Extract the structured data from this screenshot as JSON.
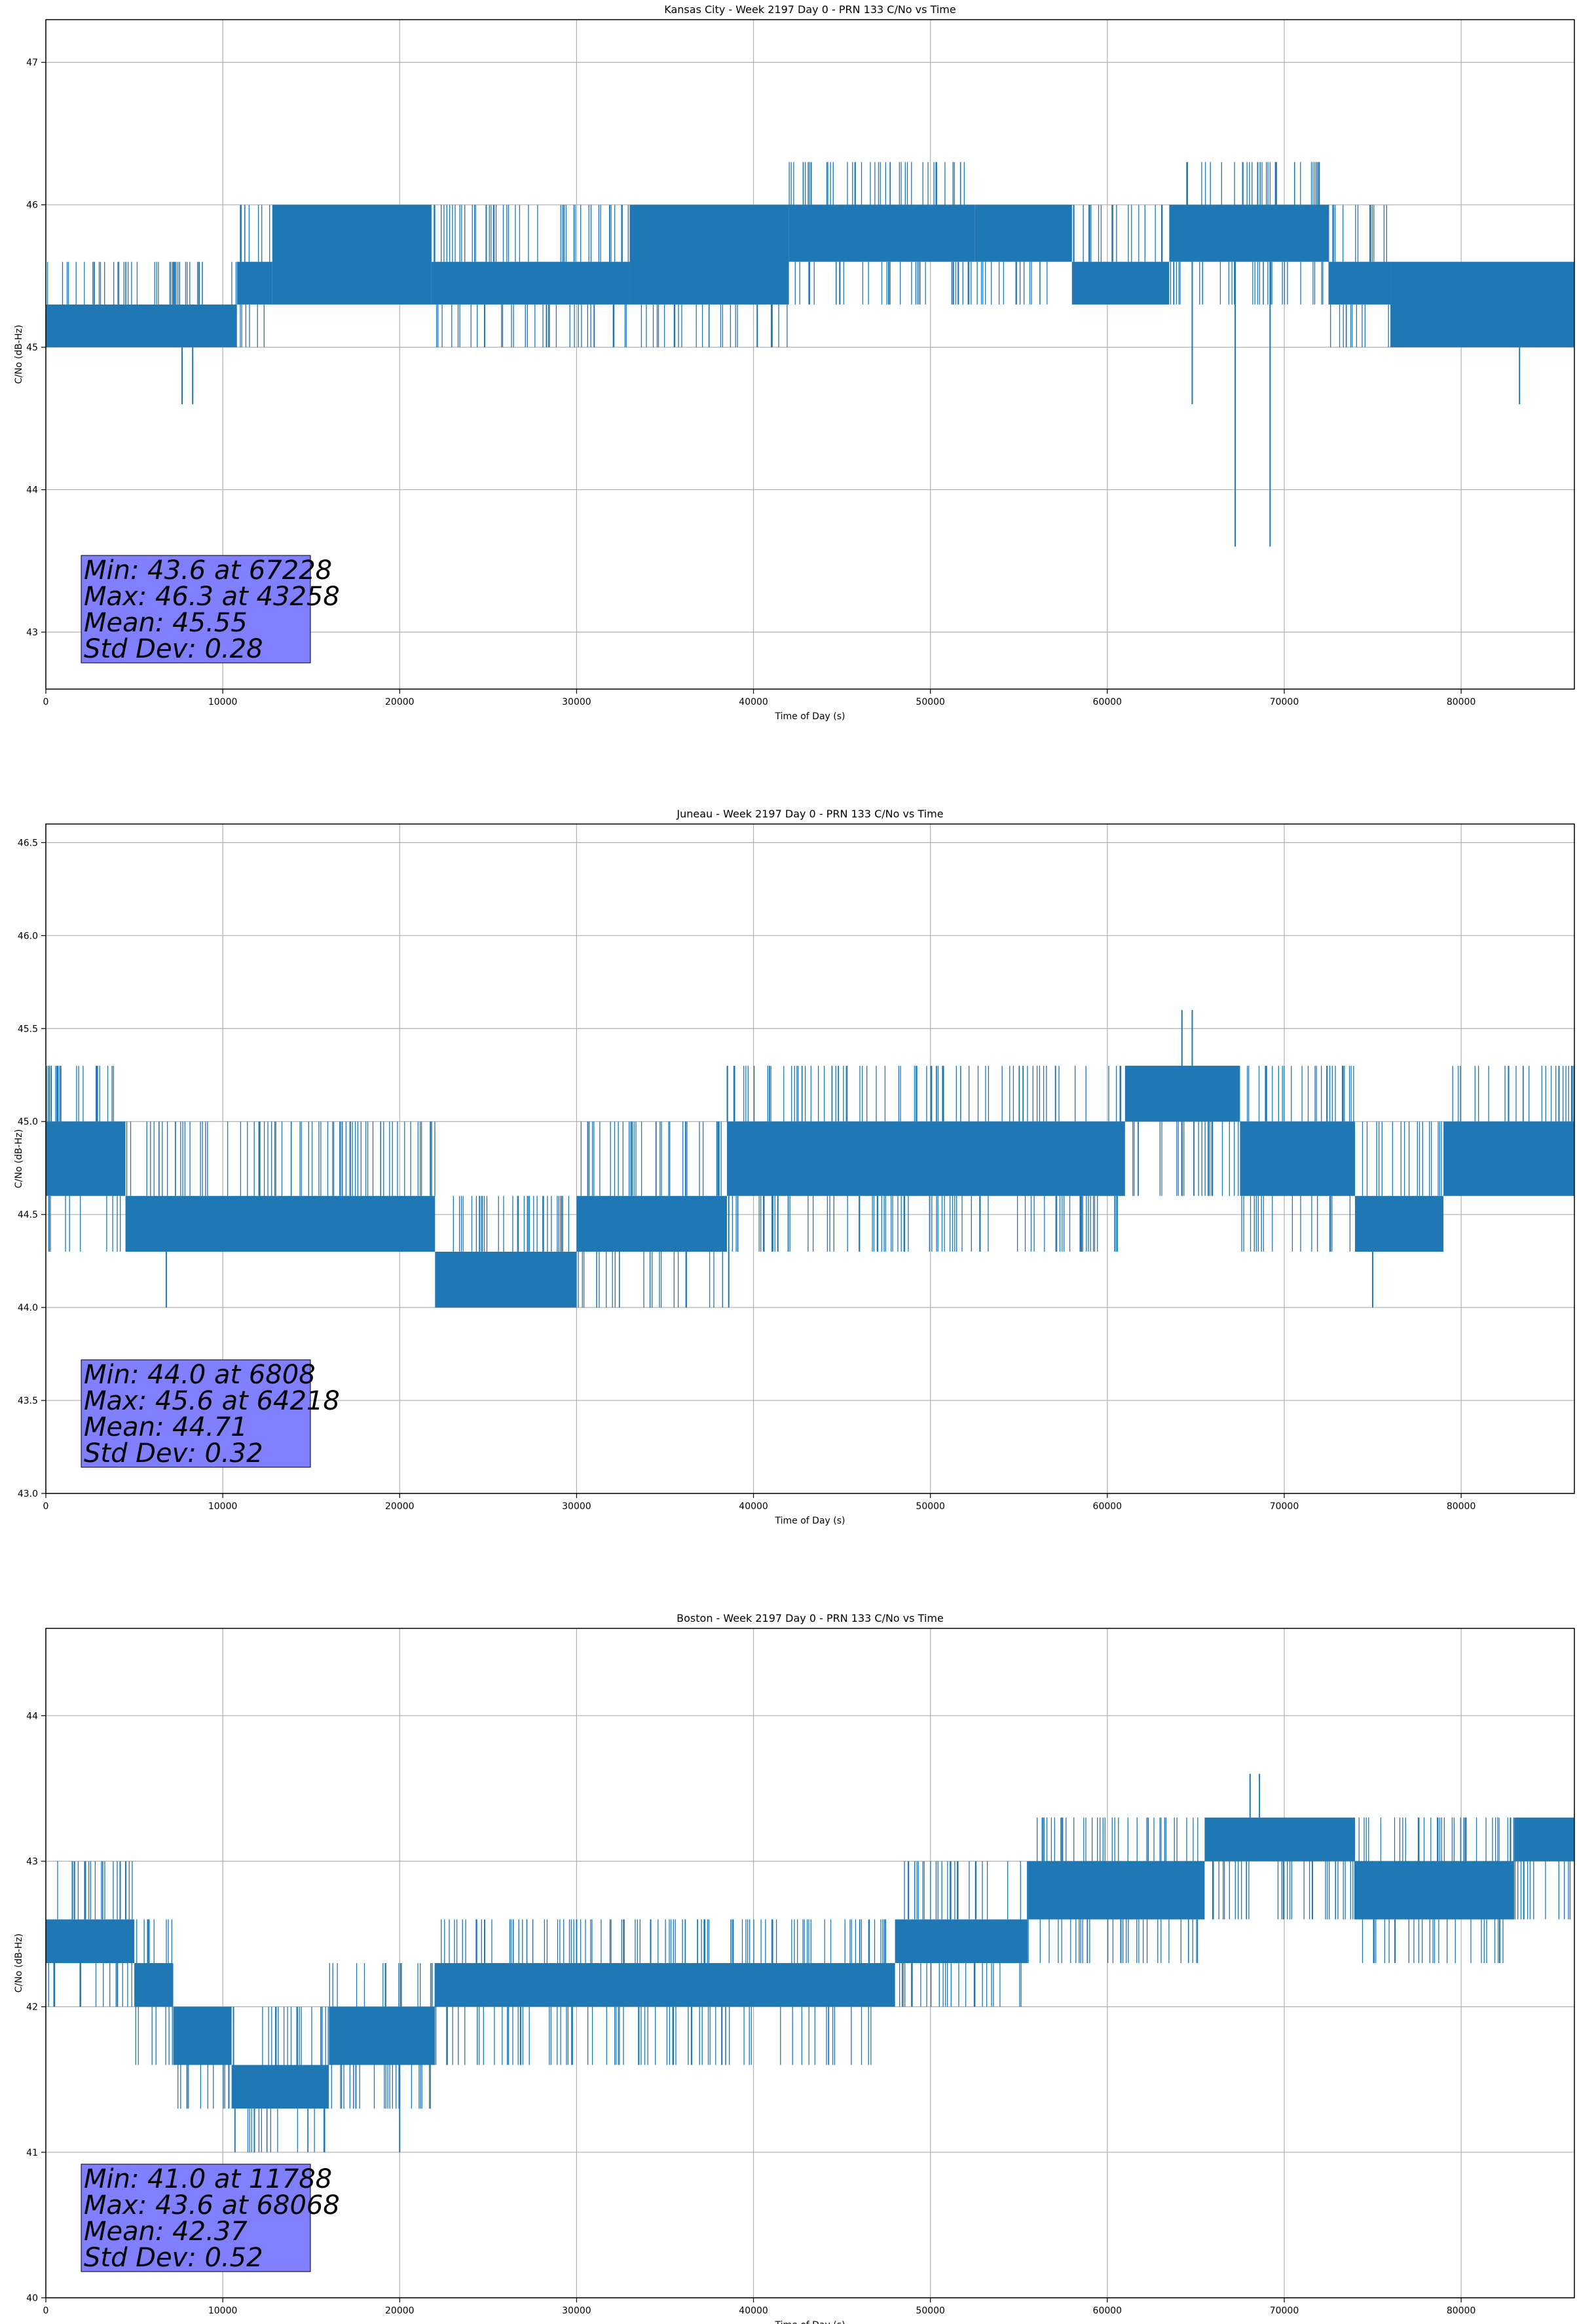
{
  "chart_data": [
    {
      "type": "line",
      "title": "Kansas City - Week 2197 Day 0 - PRN 133 C/No vs Time",
      "xlabel": "Time of Day (s)",
      "ylabel": "C/No (dB-Hz)",
      "xlim": [
        0,
        86400
      ],
      "ylim": [
        42.6,
        47.3
      ],
      "xticks": [
        0,
        10000,
        20000,
        30000,
        40000,
        50000,
        60000,
        70000,
        80000
      ],
      "yticks": [
        43,
        44,
        45,
        46,
        47
      ],
      "ytick_decimals": 0,
      "grid": true,
      "color": "#1f77b4",
      "segments": [
        {
          "x": [
            0,
            10800
          ],
          "base": [
            45.0,
            45.3
          ],
          "hi": 45.6,
          "lo": 45.0
        },
        {
          "x": [
            10800,
            12800
          ],
          "base": [
            45.3,
            45.6
          ],
          "hi": 46.0,
          "lo": 45.0
        },
        {
          "x": [
            12800,
            21800
          ],
          "base": [
            45.3,
            46.0
          ],
          "hi": 46.0,
          "lo": 45.3
        },
        {
          "x": [
            21800,
            33000
          ],
          "base": [
            45.3,
            45.6
          ],
          "hi": 46.0,
          "lo": 45.0
        },
        {
          "x": [
            33000,
            42000
          ],
          "base": [
            45.3,
            46.0
          ],
          "hi": 46.0,
          "lo": 45.0
        },
        {
          "x": [
            42000,
            52500
          ],
          "base": [
            45.6,
            46.0
          ],
          "hi": 46.3,
          "lo": 45.3
        },
        {
          "x": [
            52500,
            58000
          ],
          "base": [
            45.6,
            46.0
          ],
          "hi": 46.0,
          "lo": 45.3
        },
        {
          "x": [
            58000,
            63500
          ],
          "base": [
            45.3,
            45.6
          ],
          "hi": 46.0,
          "lo": 45.3
        },
        {
          "x": [
            63500,
            72500
          ],
          "base": [
            45.6,
            46.0
          ],
          "hi": 46.3,
          "lo": 45.3
        },
        {
          "x": [
            72500,
            76000
          ],
          "base": [
            45.3,
            45.6
          ],
          "hi": 46.0,
          "lo": 45.0
        },
        {
          "x": [
            76000,
            86400
          ],
          "base": [
            45.0,
            45.6
          ],
          "hi": 45.6,
          "lo": 45.0
        }
      ],
      "spikes": [
        {
          "x": 7700,
          "y": 44.6
        },
        {
          "x": 8300,
          "y": 44.6
        },
        {
          "x": 24800,
          "y": 45.0
        },
        {
          "x": 28300,
          "y": 45.0
        },
        {
          "x": 43258,
          "y": 46.3
        },
        {
          "x": 64800,
          "y": 44.6
        },
        {
          "x": 67228,
          "y": 43.6
        },
        {
          "x": 69200,
          "y": 43.6
        },
        {
          "x": 68500,
          "y": 46.3
        },
        {
          "x": 83300,
          "y": 44.6
        }
      ],
      "stats": [
        "Min: 43.6 at 67228",
        "Max: 46.3 at 43258",
        "Mean: 45.55",
        "Std Dev: 0.28"
      ]
    },
    {
      "type": "line",
      "title": "Juneau - Week 2197 Day 0 - PRN 133 C/No vs Time",
      "xlabel": "Time of Day (s)",
      "ylabel": "C/No (dB-Hz)",
      "xlim": [
        0,
        86400
      ],
      "ylim": [
        43.0,
        46.6
      ],
      "xticks": [
        0,
        10000,
        20000,
        30000,
        40000,
        50000,
        60000,
        70000,
        80000
      ],
      "yticks": [
        43.0,
        43.5,
        44.0,
        44.5,
        45.0,
        45.5,
        46.0,
        46.5
      ],
      "ytick_decimals": 1,
      "grid": true,
      "color": "#1f77b4",
      "segments": [
        {
          "x": [
            0,
            4500
          ],
          "base": [
            44.6,
            45.0
          ],
          "hi": 45.3,
          "lo": 44.3
        },
        {
          "x": [
            4500,
            22000
          ],
          "base": [
            44.3,
            44.6
          ],
          "hi": 45.0,
          "lo": 44.3
        },
        {
          "x": [
            22000,
            30000
          ],
          "base": [
            44.0,
            44.3
          ],
          "hi": 44.6,
          "lo": 44.0
        },
        {
          "x": [
            30000,
            38500
          ],
          "base": [
            44.3,
            44.6
          ],
          "hi": 45.0,
          "lo": 44.0
        },
        {
          "x": [
            38500,
            61000
          ],
          "base": [
            44.6,
            45.0
          ],
          "hi": 45.3,
          "lo": 44.3
        },
        {
          "x": [
            61000,
            67500
          ],
          "base": [
            45.0,
            45.3
          ],
          "hi": 45.3,
          "lo": 44.6
        },
        {
          "x": [
            67500,
            74000
          ],
          "base": [
            44.6,
            45.0
          ],
          "hi": 45.3,
          "lo": 44.3
        },
        {
          "x": [
            74000,
            79000
          ],
          "base": [
            44.3,
            44.6
          ],
          "hi": 45.0,
          "lo": 44.3
        },
        {
          "x": [
            79000,
            86400
          ],
          "base": [
            44.6,
            45.0
          ],
          "hi": 45.3,
          "lo": 44.6
        }
      ],
      "spikes": [
        {
          "x": 6808,
          "y": 44.0
        },
        {
          "x": 64218,
          "y": 45.6
        },
        {
          "x": 64800,
          "y": 45.6
        },
        {
          "x": 75000,
          "y": 44.0
        },
        {
          "x": 38600,
          "y": 44.0
        },
        {
          "x": 300,
          "y": 45.3
        }
      ],
      "stats": [
        "Min: 44.0 at 6808",
        "Max: 45.6 at 64218",
        "Mean: 44.71",
        "Std Dev: 0.32"
      ]
    },
    {
      "type": "line",
      "title": "Boston - Week 2197 Day 0 - PRN 133 C/No vs Time",
      "xlabel": "Time of Day (s)",
      "ylabel": "C/No (dB-Hz)",
      "xlim": [
        0,
        86400
      ],
      "ylim": [
        40,
        44.6
      ],
      "xticks": [
        0,
        10000,
        20000,
        30000,
        40000,
        50000,
        60000,
        70000,
        80000
      ],
      "yticks": [
        40,
        41,
        42,
        43,
        44
      ],
      "ytick_decimals": 0,
      "grid": true,
      "color": "#1f77b4",
      "segments": [
        {
          "x": [
            0,
            5000
          ],
          "base": [
            42.3,
            42.6
          ],
          "hi": 43.0,
          "lo": 42.0
        },
        {
          "x": [
            5000,
            7200
          ],
          "base": [
            42.0,
            42.3
          ],
          "hi": 42.6,
          "lo": 41.6
        },
        {
          "x": [
            7200,
            10500
          ],
          "base": [
            41.6,
            42.0
          ],
          "hi": 42.0,
          "lo": 41.3
        },
        {
          "x": [
            10500,
            16000
          ],
          "base": [
            41.3,
            41.6
          ],
          "hi": 42.0,
          "lo": 41.0
        },
        {
          "x": [
            16000,
            22000
          ],
          "base": [
            41.6,
            42.0
          ],
          "hi": 42.3,
          "lo": 41.3
        },
        {
          "x": [
            22000,
            48000
          ],
          "base": [
            42.0,
            42.3
          ],
          "hi": 42.6,
          "lo": 41.6
        },
        {
          "x": [
            48000,
            55500
          ],
          "base": [
            42.3,
            42.6
          ],
          "hi": 43.0,
          "lo": 42.0
        },
        {
          "x": [
            55500,
            65500
          ],
          "base": [
            42.6,
            43.0
          ],
          "hi": 43.3,
          "lo": 42.3
        },
        {
          "x": [
            65500,
            74000
          ],
          "base": [
            43.0,
            43.3
          ],
          "hi": 43.3,
          "lo": 42.6
        },
        {
          "x": [
            74000,
            83000
          ],
          "base": [
            42.6,
            43.0
          ],
          "hi": 43.3,
          "lo": 42.3
        },
        {
          "x": [
            83000,
            86400
          ],
          "base": [
            43.0,
            43.3
          ],
          "hi": 43.3,
          "lo": 42.6
        }
      ],
      "spikes": [
        {
          "x": 11788,
          "y": 41.0
        },
        {
          "x": 20000,
          "y": 41.0
        },
        {
          "x": 68068,
          "y": 43.6
        },
        {
          "x": 68600,
          "y": 43.6
        },
        {
          "x": 1500,
          "y": 43.0
        },
        {
          "x": 2200,
          "y": 43.0
        },
        {
          "x": 24800,
          "y": 42.6
        },
        {
          "x": 30000,
          "y": 42.6
        }
      ],
      "stats": [
        "Min: 41.0 at 11788",
        "Max: 43.6 at 68068",
        "Mean: 42.37",
        "Std Dev: 0.52"
      ]
    }
  ]
}
